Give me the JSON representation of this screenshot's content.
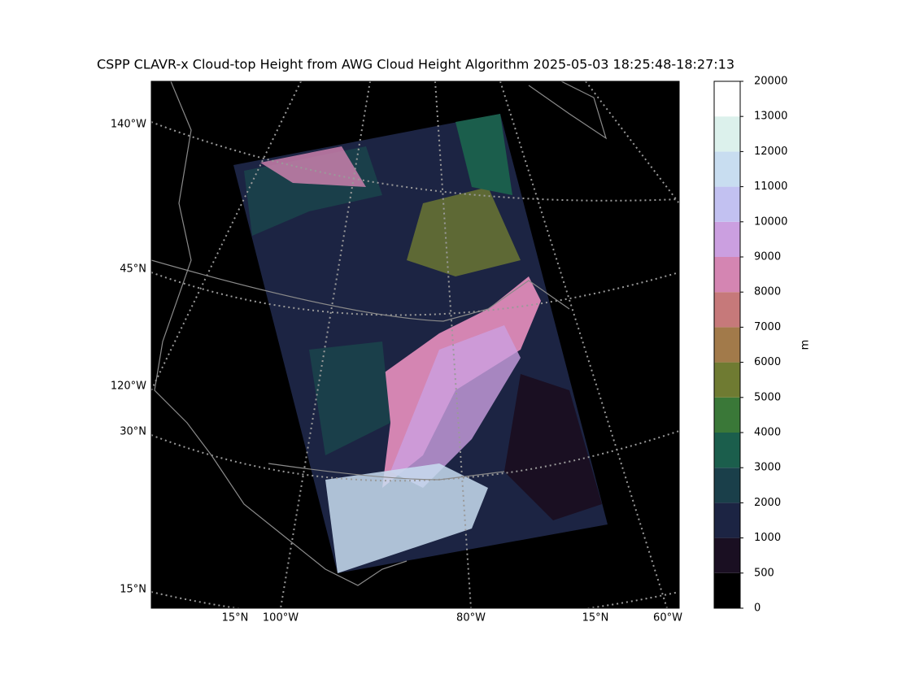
{
  "title": "CSPP CLAVR-x Cloud-top Height from AWG Cloud Height Algorithm 2025-05-03 18:25:48-18:27:13",
  "map": {
    "left_labels": [
      "140°W",
      "45°N",
      "120°W",
      "30°N",
      "15°N"
    ],
    "bottom_labels": [
      "15°N",
      "100°W",
      "80°W",
      "15°N",
      "60°W"
    ]
  },
  "colorbar": {
    "label": "m",
    "ticks": [
      0,
      500,
      1000,
      2000,
      3000,
      4000,
      5000,
      6000,
      7000,
      8000,
      9000,
      10000,
      11000,
      12000,
      13000,
      20000
    ],
    "colors": [
      "#000000",
      "#1a0f22",
      "#1c2443",
      "#1a3f4a",
      "#1b5e4c",
      "#3a7838",
      "#6f7b32",
      "#a27a4a",
      "#c6797a",
      "#d485b2",
      "#cb9fe0",
      "#c2c1f1",
      "#c8ddf0",
      "#dcf1ec",
      "#ffffff"
    ]
  }
}
